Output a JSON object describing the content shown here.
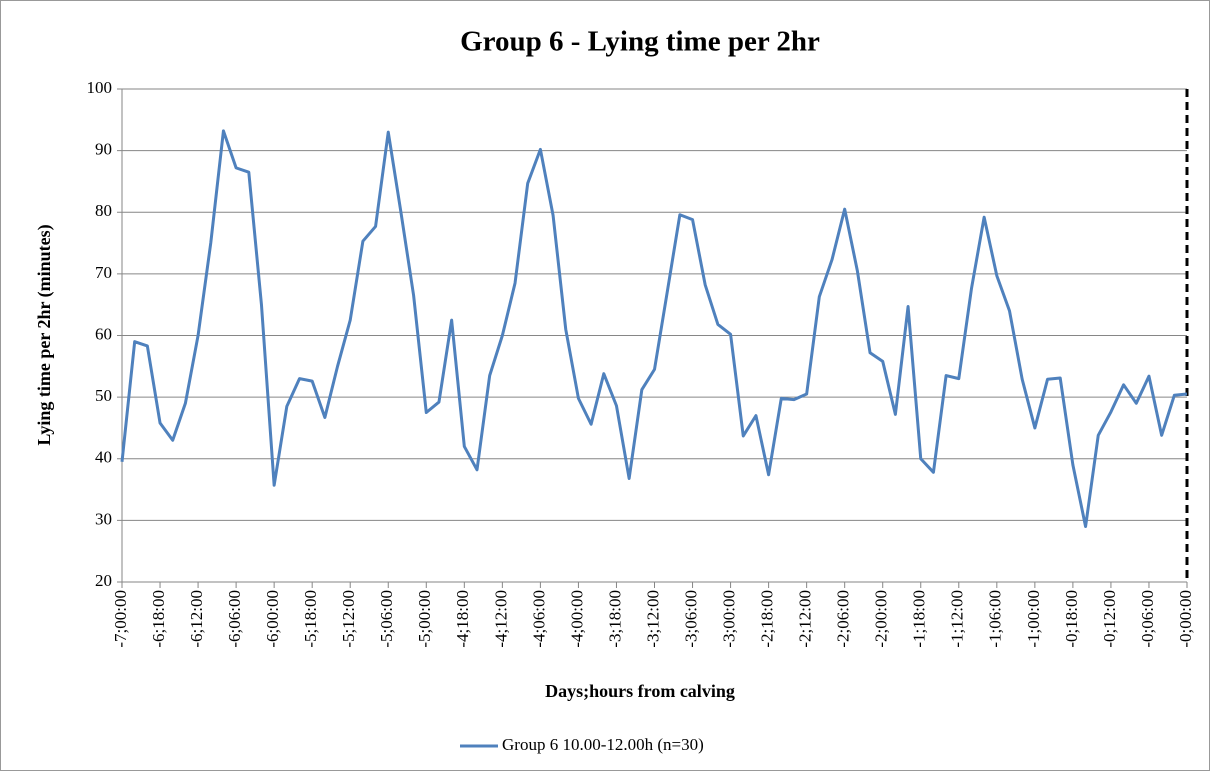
{
  "chart_data": {
    "type": "line",
    "title": "Group 6 - Lying time per 2hr",
    "x_label": "Days;hours from calving",
    "y_label": "Lying time per 2hr (minutes)",
    "categories": [
      "-7;00:00",
      null,
      null,
      "-6;18:00",
      null,
      null,
      "-6;12:00",
      null,
      null,
      "-6;06:00",
      null,
      null,
      "-6;00:00",
      null,
      null,
      "-5;18:00",
      null,
      null,
      "-5;12:00",
      null,
      null,
      "-5;06:00",
      null,
      null,
      "-5;00:00",
      null,
      null,
      "-4;18:00",
      null,
      null,
      "-4;12:00",
      null,
      null,
      "-4;06:00",
      null,
      null,
      "-4;00:00",
      null,
      null,
      "-3;18:00",
      null,
      null,
      "-3;12:00",
      null,
      null,
      "-3;06:00",
      null,
      null,
      "-3;00:00",
      null,
      null,
      "-2;18:00",
      null,
      null,
      "-2;12:00",
      null,
      null,
      "-2;06:00",
      null,
      null,
      "-2;00:00",
      null,
      null,
      "-1;18:00",
      null,
      null,
      "-1;12:00",
      null,
      null,
      "-1;06:00",
      null,
      null,
      "-1;00:00",
      null,
      null,
      "-0;18:00",
      null,
      null,
      "-0;12:00",
      null,
      null,
      "-0;06:00",
      null,
      null,
      "-0;00:00"
    ],
    "series": [
      {
        "name": "Group 6 10.00-12.00h (n=30)",
        "color": "#4f81bd",
        "values": [
          39.5,
          59,
          58.3,
          45.8,
          43,
          49,
          60,
          75,
          93.2,
          87.2,
          86.5,
          65,
          35.7,
          48.5,
          53,
          52.6,
          46.7,
          55,
          62.5,
          75.3,
          77.7,
          93,
          80,
          66.5,
          47.5,
          49.2,
          62.5,
          42,
          38.2,
          53.5,
          60,
          68.5,
          84.7,
          90.2,
          79.5,
          61,
          49.8,
          45.6,
          53.8,
          48.6,
          36.8,
          51.2,
          54.5,
          67,
          79.6,
          78.8,
          68.2,
          61.8,
          60.2,
          43.7,
          47,
          37.4,
          49.8,
          49.6,
          50.5,
          66.3,
          72.3,
          80.5,
          70.5,
          57.2,
          55.8,
          47.2,
          64.7,
          40,
          37.8,
          53.5,
          53,
          67.6,
          79.2,
          69.7,
          64,
          52.9,
          45,
          52.9,
          53.1,
          39,
          29,
          43.8,
          47.6,
          52,
          49,
          53.4,
          43.8,
          50.3,
          50.5
        ]
      }
    ],
    "ylim": [
      20,
      100
    ],
    "yticks": [
      20,
      30,
      40,
      50,
      60,
      70,
      80,
      90,
      100
    ],
    "grid": true,
    "legend": "bottom"
  }
}
